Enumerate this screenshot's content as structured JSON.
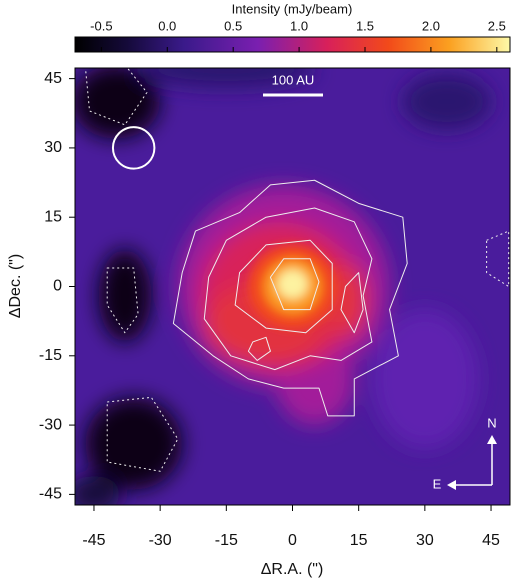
{
  "chart_data": {
    "type": "image",
    "colorbar": {
      "label": "Intensity (mJy/beam)",
      "lim": [
        -0.7,
        2.6
      ],
      "ticks": [
        -0.5,
        {
          "value": 0,
          "label": "0.0"
        },
        0.5,
        {
          "value": 1,
          "label": "1.0"
        },
        1.5,
        {
          "value": 2,
          "label": "2.0"
        },
        2.5
      ]
    },
    "xlabel": "ΔR.A. (\")",
    "ylabel": "ΔDec. (\")",
    "xlim": [
      -49.3,
      49.3
    ],
    "ylim": [
      -47.3,
      47.3
    ],
    "xticks": [
      -45,
      -30,
      -15,
      0,
      15,
      30,
      45
    ],
    "yticks": [
      -45,
      -30,
      -15,
      0,
      15,
      30,
      45
    ],
    "scalebar": "100 AU",
    "compass": {
      "north": "N",
      "east": "E"
    }
  }
}
